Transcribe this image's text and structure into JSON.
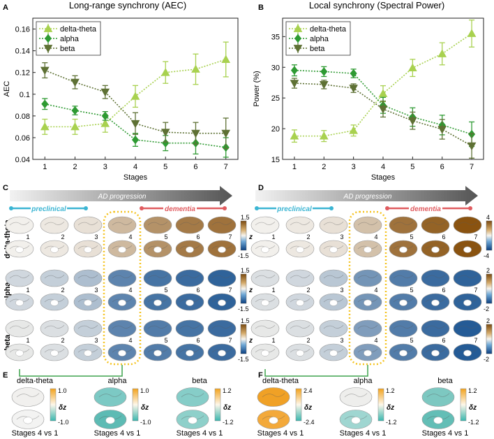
{
  "panels": {
    "A": {
      "letter": "A",
      "title": "Long-range synchrony (AEC)"
    },
    "B": {
      "letter": "B",
      "title": "Local synchrony (Spectral Power)"
    },
    "C": {
      "letter": "C"
    },
    "D": {
      "letter": "D"
    },
    "E": {
      "letter": "E"
    },
    "F": {
      "letter": "F"
    }
  },
  "colors": {
    "delta_theta": "#a8d14f",
    "alpha": "#2e9a32",
    "beta": "#5e7134",
    "preclinical": "#3bb5d3",
    "dementia": "#e05b5f",
    "highlight": "#f5c422",
    "bracket": "#3fa34d"
  },
  "brain_grid": {
    "arrow_label": "AD progression",
    "preclinical_label": "preclinical",
    "dementia_label": "dementia",
    "stages": [
      "1",
      "2",
      "3",
      "4",
      "5",
      "6",
      "7"
    ],
    "row_labels": [
      "delta-theta",
      "alpha",
      "beta"
    ],
    "z_label": "z",
    "C_scales": [
      [
        "1.5",
        "-1.5"
      ],
      [
        "1.5",
        "-1.5"
      ],
      [
        "1.5",
        "-1.5"
      ]
    ],
    "D_scales": [
      [
        "4",
        "-4"
      ],
      [
        "2",
        "-2"
      ],
      [
        "2",
        "-2"
      ]
    ]
  },
  "contrast": {
    "caption": "Stages 4 vs 1",
    "dz_label": "δz",
    "E": {
      "titles": [
        "delta-theta",
        "alpha",
        "beta"
      ],
      "scales": [
        [
          "1.0",
          "-1.0"
        ],
        [
          "1.0",
          "-1.0"
        ],
        [
          "1.2",
          "-1.2"
        ]
      ]
    },
    "F": {
      "titles": [
        "delta-theta",
        "alpha",
        "beta"
      ],
      "scales": [
        [
          "2.4",
          "-2.4"
        ],
        [
          "1.2",
          "-1.2"
        ],
        [
          "1.2",
          "-1.2"
        ]
      ]
    }
  },
  "chart_data": [
    {
      "panel": "A",
      "type": "line",
      "title": "Long-range synchrony (AEC)",
      "xlabel": "Stages",
      "ylabel": "AEC",
      "x": [
        1,
        2,
        3,
        4,
        5,
        6,
        7
      ],
      "xlim": [
        0.6,
        7.4
      ],
      "ylim": [
        0.04,
        0.17
      ],
      "yticks": [
        "0.04",
        "0.06",
        "0.08",
        "0.1",
        "0.12",
        "0.14",
        "0.16"
      ],
      "ytick_values": [
        0.04,
        0.06,
        0.08,
        0.1,
        0.12,
        0.14,
        0.16
      ],
      "grid": false,
      "legend": "top-left",
      "series": [
        {
          "name": "delta-theta",
          "color": "#a8d14f",
          "marker": "triangle-up",
          "values": [
            0.07,
            0.07,
            0.073,
            0.098,
            0.12,
            0.123,
            0.132
          ],
          "err": [
            0.007,
            0.007,
            0.008,
            0.01,
            0.01,
            0.014,
            0.016
          ]
        },
        {
          "name": "alpha",
          "color": "#2e9a32",
          "marker": "diamond",
          "values": [
            0.091,
            0.085,
            0.08,
            0.058,
            0.055,
            0.055,
            0.051
          ],
          "err": [
            0.005,
            0.004,
            0.004,
            0.006,
            0.007,
            0.01,
            0.009
          ]
        },
        {
          "name": "beta",
          "color": "#5e7134",
          "marker": "triangle-down",
          "values": [
            0.122,
            0.111,
            0.102,
            0.073,
            0.065,
            0.064,
            0.064
          ],
          "err": [
            0.007,
            0.006,
            0.006,
            0.01,
            0.009,
            0.01,
            0.014
          ]
        }
      ]
    },
    {
      "panel": "B",
      "type": "line",
      "title": "Local synchrony (Spectral Power)",
      "xlabel": "Stages",
      "ylabel": "Power (%)",
      "x": [
        1,
        2,
        3,
        4,
        5,
        6,
        7
      ],
      "xlim": [
        0.6,
        7.4
      ],
      "ylim": [
        15,
        38
      ],
      "yticks": [
        "15",
        "20",
        "25",
        "30",
        "35"
      ],
      "ytick_values": [
        15,
        20,
        25,
        30,
        35
      ],
      "grid": false,
      "legend": "top-left",
      "series": [
        {
          "name": "delta-theta",
          "color": "#a8d14f",
          "marker": "triangle-up",
          "values": [
            18.8,
            18.8,
            19.7,
            25.7,
            29.9,
            32.2,
            35.5
          ],
          "err": [
            1.0,
            0.9,
            0.9,
            1.3,
            1.4,
            1.8,
            2.2
          ]
        },
        {
          "name": "alpha",
          "color": "#2e9a32",
          "marker": "diamond",
          "values": [
            29.5,
            29.3,
            29.0,
            23.8,
            21.9,
            20.6,
            19.1
          ],
          "err": [
            0.9,
            0.8,
            0.7,
            1.3,
            1.5,
            1.6,
            2.0
          ]
        },
        {
          "name": "beta",
          "color": "#5e7134",
          "marker": "triangle-down",
          "values": [
            27.4,
            27.2,
            26.6,
            23.2,
            21.3,
            19.9,
            17.2
          ],
          "err": [
            0.8,
            0.7,
            0.7,
            1.3,
            1.4,
            1.6,
            2.0
          ]
        }
      ]
    }
  ]
}
